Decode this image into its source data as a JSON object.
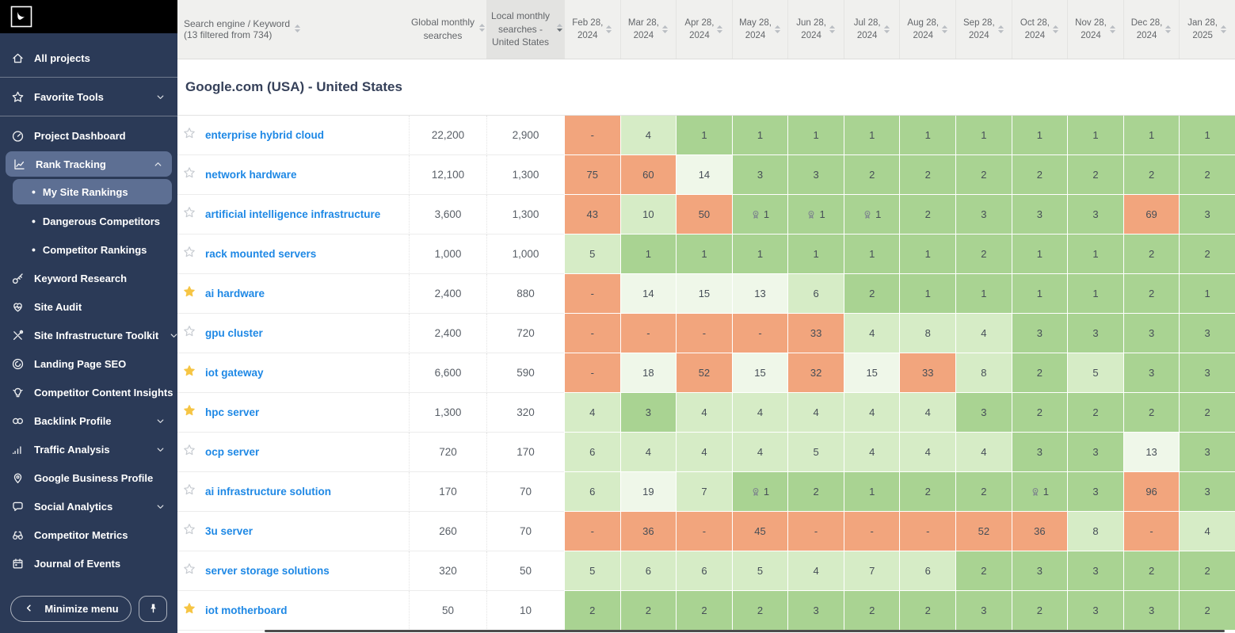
{
  "sidebar": {
    "minimize_label": "Minimize menu",
    "nav_items": [
      {
        "label": "All projects",
        "icon": "home",
        "divider_after": true
      },
      {
        "label": "Favorite Tools",
        "icon": "star",
        "chevron": "down",
        "divider_after": true
      },
      {
        "label": "Project Dashboard",
        "icon": "gauge"
      },
      {
        "label": "Rank Tracking",
        "icon": "rank-chart",
        "chevron": "up",
        "active": true,
        "children": [
          {
            "label": "My Site Rankings",
            "selected": true
          },
          {
            "label": "Dangerous Competitors"
          },
          {
            "label": "Competitor Rankings"
          }
        ]
      },
      {
        "label": "Keyword Research",
        "icon": "key"
      },
      {
        "label": "Site Audit",
        "icon": "heart-pulse"
      },
      {
        "label": "Site Infrastructure Toolkit",
        "icon": "tools",
        "chevron": "down"
      },
      {
        "label": "Landing Page SEO",
        "icon": "target-swirl"
      },
      {
        "label": "Competitor Content Insights",
        "icon": "lightbulb"
      },
      {
        "label": "Backlink Profile",
        "icon": "links",
        "chevron": "down"
      },
      {
        "label": "Traffic Analysis",
        "icon": "bar-chart",
        "chevron": "down"
      },
      {
        "label": "Google Business Profile",
        "icon": "location-pin"
      },
      {
        "label": "Social Analytics",
        "icon": "speech-bubble",
        "chevron": "down"
      },
      {
        "label": "Competitor Metrics",
        "icon": "binoculars"
      },
      {
        "label": "Journal of Events",
        "icon": "calendar"
      }
    ]
  },
  "table": {
    "header": {
      "keyword_col": "Search engine / Keyword (13 filtered from 734)",
      "global_col": "Global monthly searches",
      "local_col": "Local monthly searches - United States",
      "local_sorted": true,
      "dates": [
        "Feb 28, 2024",
        "Mar 28, 2024",
        "Apr 28, 2024",
        "May 28, 2024",
        "Jun 28, 2024",
        "Jul 28, 2024",
        "Aug 28, 2024",
        "Sep 28, 2024",
        "Oct 28, 2024",
        "Nov 28, 2024",
        "Dec 28, 2024",
        "Jan 28, 2025"
      ]
    },
    "section_title": "Google.com (USA) - United States",
    "rows": [
      {
        "starred": false,
        "keyword": "enterprise hybrid cloud",
        "global": "22,200",
        "local": "2,900",
        "ranks": [
          "-",
          "4",
          "1",
          "1",
          "1",
          "1",
          "1",
          "1",
          "1",
          "1",
          "1",
          "1"
        ]
      },
      {
        "starred": false,
        "keyword": "network hardware",
        "global": "12,100",
        "local": "1,300",
        "ranks": [
          "75",
          "60",
          "14",
          "3",
          "3",
          "2",
          "2",
          "2",
          "2",
          "2",
          "2",
          "2"
        ]
      },
      {
        "starred": false,
        "keyword": "artificial intelligence infrastructure",
        "global": "3,600",
        "local": "1,300",
        "ranks": [
          "43",
          "10",
          "50",
          {
            "v": "1",
            "medal": true
          },
          {
            "v": "1",
            "medal": true
          },
          {
            "v": "1",
            "medal": true
          },
          "2",
          "3",
          "3",
          "3",
          "69",
          "3"
        ]
      },
      {
        "starred": false,
        "keyword": "rack mounted servers",
        "global": "1,000",
        "local": "1,000",
        "ranks": [
          "5",
          "1",
          "1",
          "1",
          "1",
          "1",
          "1",
          "2",
          "1",
          "1",
          "2",
          "2"
        ]
      },
      {
        "starred": true,
        "keyword": "ai hardware",
        "global": "2,400",
        "local": "880",
        "ranks": [
          "-",
          "14",
          "15",
          "13",
          "6",
          "2",
          "1",
          "1",
          "1",
          "1",
          "2",
          "1"
        ]
      },
      {
        "starred": false,
        "keyword": "gpu cluster",
        "global": "2,400",
        "local": "720",
        "ranks": [
          "-",
          "-",
          "-",
          "-",
          "33",
          "4",
          "8",
          "4",
          "3",
          "3",
          "3",
          "3"
        ]
      },
      {
        "starred": true,
        "keyword": "iot gateway",
        "global": "6,600",
        "local": "590",
        "ranks": [
          "-",
          "18",
          "52",
          "15",
          "32",
          "15",
          "33",
          "8",
          "2",
          "5",
          "3",
          "3"
        ]
      },
      {
        "starred": true,
        "keyword": "hpc server",
        "global": "1,300",
        "local": "320",
        "ranks": [
          "4",
          "3",
          "4",
          "4",
          "4",
          "4",
          "4",
          "3",
          "2",
          "2",
          "2",
          "2"
        ]
      },
      {
        "starred": false,
        "keyword": "ocp server",
        "global": "720",
        "local": "170",
        "ranks": [
          "6",
          "4",
          "4",
          "4",
          "5",
          "4",
          "4",
          "4",
          "3",
          "3",
          "13",
          "3"
        ]
      },
      {
        "starred": false,
        "keyword": "ai infrastructure solution",
        "global": "170",
        "local": "70",
        "ranks": [
          "6",
          "19",
          "7",
          {
            "v": "1",
            "medal": true
          },
          "2",
          "1",
          "2",
          "2",
          {
            "v": "1",
            "medal": true
          },
          "3",
          "96",
          "3"
        ]
      },
      {
        "starred": false,
        "keyword": "3u server",
        "global": "260",
        "local": "70",
        "ranks": [
          "-",
          "36",
          "-",
          "45",
          "-",
          "-",
          "-",
          "52",
          "36",
          "8",
          "-",
          "4"
        ]
      },
      {
        "starred": false,
        "keyword": "server storage solutions",
        "global": "320",
        "local": "50",
        "ranks": [
          "5",
          "6",
          "6",
          "5",
          "4",
          "7",
          "6",
          "2",
          "3",
          "3",
          "2",
          "2"
        ]
      },
      {
        "starred": true,
        "keyword": "iot motherboard",
        "global": "50",
        "local": "10",
        "ranks": [
          "2",
          "2",
          "2",
          "2",
          "3",
          "2",
          "2",
          "3",
          "2",
          "3",
          "3",
          "2"
        ]
      }
    ]
  },
  "colors": {
    "rank_top3_green": "#a9d392",
    "rank_top10_green": "#d6ecc6",
    "rank_top20_green": "#eff7e9",
    "rank_poor_orange": "#f2a57d",
    "keyword_link_blue": "#1e88e5",
    "favorite_star_yellow": "#f6c544",
    "sidebar_bg": "#2b3a57",
    "sidebar_active_bg": "#5d6f93"
  }
}
